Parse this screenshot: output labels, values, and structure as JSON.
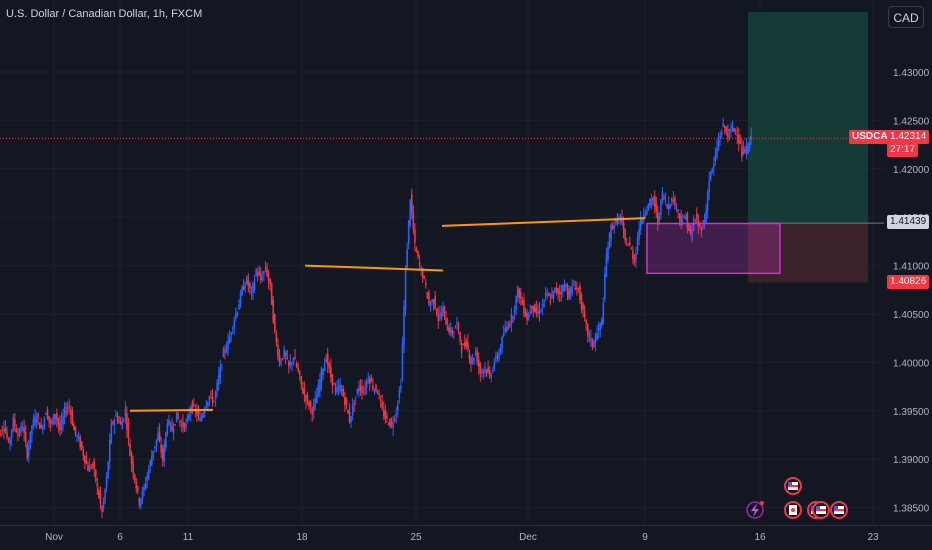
{
  "header": {
    "title": "U.S. Dollar / Canadian Dollar, 1h, FXCM",
    "currency_button": "CAD"
  },
  "price_tags": {
    "symbol": "USDCAD",
    "last_price": "1.42314",
    "countdown": "27:17",
    "entry_price": "1.41439",
    "stop_price": "1.40826"
  },
  "colors": {
    "up": "#2962ff",
    "down": "#f23645",
    "target_zone": "#153b36",
    "stop_zone": "#3a2228",
    "range_box": "#cc33cc",
    "level_line": "#ff9800"
  },
  "chart_data": {
    "type": "line",
    "y_axis_ticks": [
      "1.43000",
      "1.42500",
      "1.42000",
      "1.41500",
      "1.41000",
      "1.40500",
      "1.40000",
      "1.39500",
      "1.39000",
      "1.38500"
    ],
    "x_axis_ticks": [
      "Nov",
      "6",
      "11",
      "18",
      "25",
      "Dec",
      "9",
      "16",
      "23"
    ],
    "ylim": [
      1.3835,
      1.4335
    ],
    "series": [
      {
        "values": [
          1.3925,
          1.3935,
          1.3915,
          1.394,
          1.3925,
          1.3935,
          1.3905,
          1.3935,
          1.3945,
          1.393,
          1.395,
          1.3935,
          1.3948,
          1.393,
          1.395,
          1.3955,
          1.393,
          1.392,
          1.3905,
          1.389,
          1.3895,
          1.387,
          1.3845,
          1.388,
          1.3935,
          1.3945,
          1.3935,
          1.395,
          1.3905,
          1.388,
          1.3855,
          1.387,
          1.389,
          1.391,
          1.3925,
          1.39,
          1.394,
          1.393,
          1.3945,
          1.3935,
          1.3935,
          1.3955,
          1.395,
          1.394,
          1.3955,
          1.3965,
          1.396,
          1.3985,
          1.401,
          1.402,
          1.404,
          1.4055,
          1.4075,
          1.4085,
          1.407,
          1.4095,
          1.4085,
          1.4098,
          1.4078,
          1.403,
          1.4,
          1.401,
          1.3995,
          1.4005,
          1.399,
          1.397,
          1.396,
          1.395,
          1.3965,
          1.399,
          1.4005,
          1.3985,
          1.397,
          1.3975,
          1.396,
          1.394,
          1.396,
          1.3975,
          1.397,
          1.3985,
          1.3975,
          1.397,
          1.395,
          1.394,
          1.3935,
          1.395,
          1.398,
          1.4095,
          1.417,
          1.412,
          1.41,
          1.4085,
          1.406,
          1.4065,
          1.4045,
          1.4055,
          1.4035,
          1.403,
          1.404,
          1.4015,
          1.402,
          1.4,
          1.401,
          1.399,
          1.3995,
          1.3985,
          1.4,
          1.401,
          1.403,
          1.404,
          1.405,
          1.4075,
          1.406,
          1.4045,
          1.406,
          1.405,
          1.4055,
          1.407,
          1.4065,
          1.4075,
          1.4072,
          1.408,
          1.407,
          1.408,
          1.4075,
          1.405,
          1.403,
          1.4018,
          1.403,
          1.4042,
          1.411,
          1.414,
          1.4145,
          1.415,
          1.4125,
          1.412,
          1.4105,
          1.414,
          1.4155,
          1.4162,
          1.417,
          1.4145,
          1.4175,
          1.416,
          1.417,
          1.416,
          1.4145,
          1.415,
          1.413,
          1.415,
          1.4138,
          1.4145,
          1.419,
          1.4205,
          1.423,
          1.4245,
          1.4235,
          1.4242,
          1.4238,
          1.4215,
          1.422,
          1.4231
        ]
      }
    ]
  }
}
